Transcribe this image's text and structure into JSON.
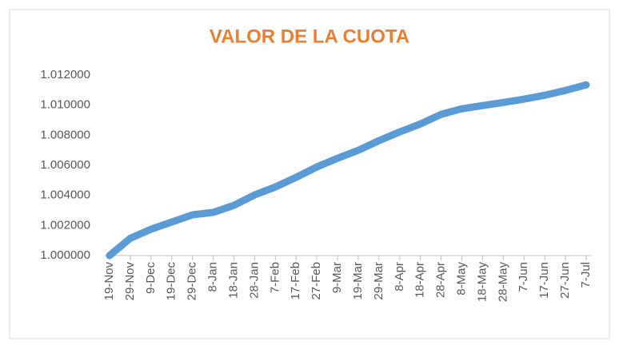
{
  "chart_data": {
    "type": "line",
    "title": "VALOR DE LA CUOTA",
    "categories": [
      "19-Nov",
      "29-Nov",
      "9-Dec",
      "19-Dec",
      "29-Dec",
      "8-Jan",
      "18-Jan",
      "28-Jan",
      "7-Feb",
      "17-Feb",
      "27-Feb",
      "9-Mar",
      "19-Mar",
      "29-Mar",
      "8-Apr",
      "18-Apr",
      "28-Apr",
      "8-May",
      "18-May",
      "28-May",
      "7-Jun",
      "17-Jun",
      "27-Jun",
      "7-Jul"
    ],
    "series": [
      {
        "color": "#5b9bd5",
        "values": [
          1.0,
          1.00115,
          1.00175,
          1.00223,
          1.00271,
          1.00287,
          1.00334,
          1.00403,
          1.00456,
          1.0052,
          1.00589,
          1.00647,
          1.007,
          1.00764,
          1.00822,
          1.00875,
          1.00939,
          1.00976,
          1.00997,
          1.01018,
          1.0104,
          1.01066,
          1.01098,
          1.01135
        ]
      }
    ],
    "ylim": [
      1.0,
      1.012
    ],
    "yticks": [
      {
        "value": 1.0,
        "label": "1.000000"
      },
      {
        "value": 1.002,
        "label": "1.002000"
      },
      {
        "value": 1.004,
        "label": "1.004000"
      },
      {
        "value": 1.006,
        "label": "1.006000"
      },
      {
        "value": 1.008,
        "label": "1.008000"
      },
      {
        "value": 1.01,
        "label": "1.010000"
      },
      {
        "value": 1.012,
        "label": "1.012000"
      }
    ],
    "grid": false
  }
}
